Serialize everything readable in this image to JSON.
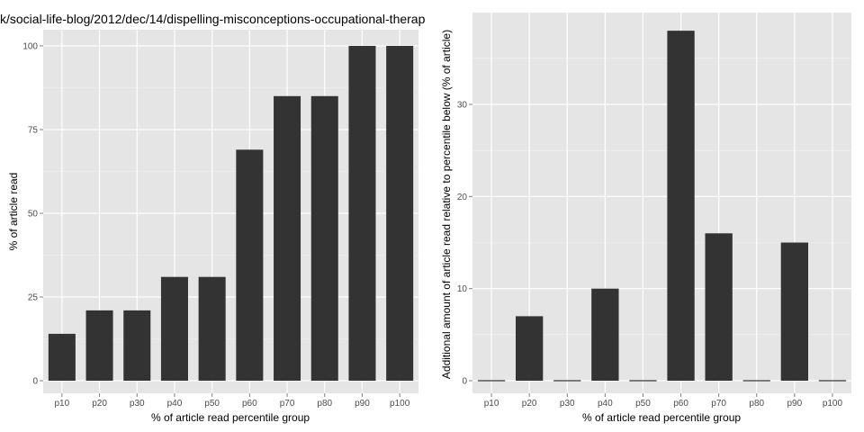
{
  "chart_data": [
    {
      "type": "bar",
      "title": "k/social-life-blog/2012/dec/14/dispelling-misconceptions-occupational-therap",
      "xlabel": "% of article read percentile group",
      "ylabel": "% of article read",
      "categories": [
        "p10",
        "p20",
        "p30",
        "p40",
        "p50",
        "p60",
        "p70",
        "p80",
        "p90",
        "p100"
      ],
      "values": [
        14,
        21,
        21,
        31,
        31,
        69,
        85,
        85,
        100,
        100
      ],
      "ylim": [
        0,
        100
      ],
      "yticks": [
        "0",
        "25",
        "50",
        "75",
        "100"
      ],
      "grid": true,
      "background": "#e5e5e5",
      "bar_color": "#333333"
    },
    {
      "type": "bar",
      "title": "",
      "xlabel": "% of article read percentile group",
      "ylabel": "Additional amount of article read relative to percentile below (% of article)",
      "categories": [
        "p10",
        "p20",
        "p30",
        "p40",
        "p50",
        "p60",
        "p70",
        "p80",
        "p90",
        "p100"
      ],
      "values": [
        0,
        7,
        0,
        10,
        0,
        38,
        16,
        0,
        15,
        0
      ],
      "ylim": [
        0,
        38
      ],
      "yticks": [
        "0",
        "10",
        "20",
        "30"
      ],
      "grid": true,
      "background": "#e5e5e5",
      "bar_color": "#333333"
    }
  ]
}
